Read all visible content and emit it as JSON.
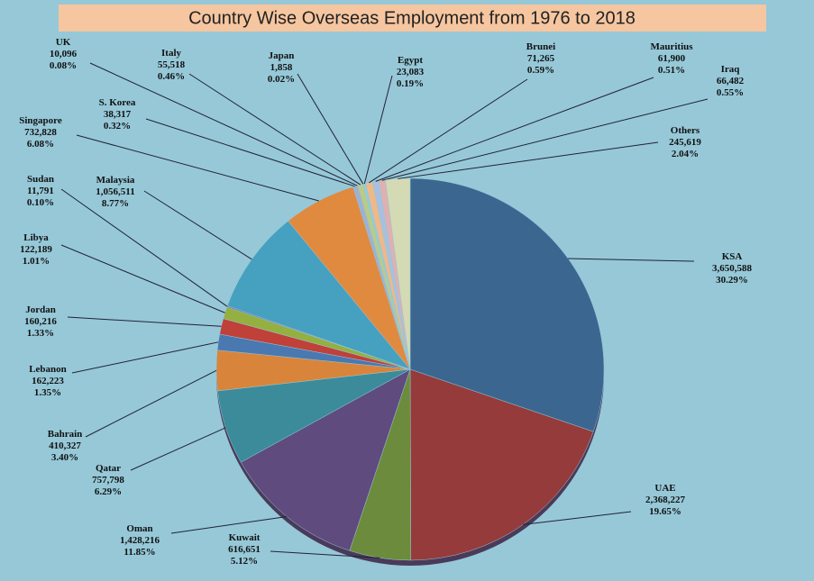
{
  "chart_data": {
    "type": "pie",
    "title": "Country Wise Overseas Employment from 1976 to 2018",
    "categories": [
      "KSA",
      "UAE",
      "Kuwait",
      "Oman",
      "Qatar",
      "Bahrain",
      "Lebanon",
      "Jordan",
      "Libya",
      "Sudan",
      "Malaysia",
      "Singapore",
      "S. Korea",
      "UK",
      "Italy",
      "Japan",
      "Egypt",
      "Brunei",
      "Mauritius",
      "Iraq",
      "Others"
    ],
    "values": [
      3650588,
      2368227,
      616651,
      1428216,
      757798,
      410327,
      162223,
      160216,
      122189,
      11791,
      1056511,
      732828,
      38317,
      10096,
      55518,
      1858,
      23083,
      71265,
      61900,
      66482,
      245619
    ],
    "value_labels": [
      "3,650,588",
      "2,368,227",
      "616,651",
      "1,428,216",
      "757,798",
      "410,327",
      "162,223",
      "160,216",
      "122,189",
      "11,791",
      "1,056,511",
      "732,828",
      "38,317",
      "10,096",
      "55,518",
      "1,858",
      "23,083",
      "71,265",
      "61,900",
      "66,482",
      "245,619"
    ],
    "percent_labels": [
      "30.29%",
      "19.65%",
      "5.12%",
      "11.85%",
      "6.29%",
      "3.40%",
      "1.35%",
      "1.33%",
      "1.01%",
      "0.10%",
      "8.77%",
      "6.08%",
      "0.32%",
      "0.08%",
      "0.46%",
      "0.02%",
      "0.19%",
      "0.59%",
      "0.51%",
      "0.55%",
      "2.04%"
    ],
    "colors": [
      "#3b6690",
      "#953b3b",
      "#6c8b3d",
      "#5f4b7e",
      "#3b8b9b",
      "#d9843b",
      "#4a78b0",
      "#c0403a",
      "#93b040",
      "#7a60a0",
      "#46a0c0",
      "#e08a40",
      "#9ab0d8",
      "#d89090",
      "#b8cc88",
      "#b0a0cc",
      "#90ccdc",
      "#f0b888",
      "#a8c0e0",
      "#e0b0b0",
      "#d4dab4"
    ]
  }
}
